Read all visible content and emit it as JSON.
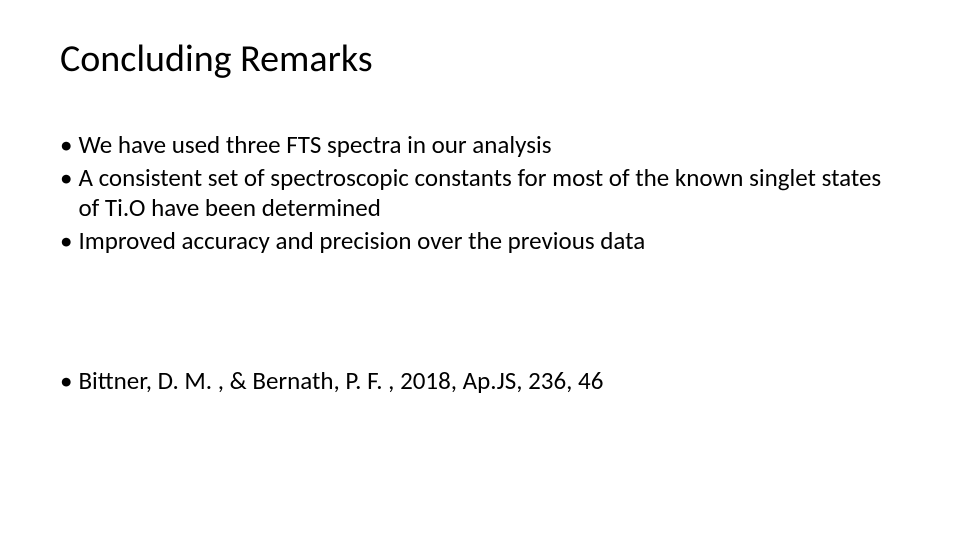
{
  "slide": {
    "title": "Concluding Remarks",
    "title_fontsize": 38,
    "title_color": "#000000",
    "background_color": "#ffffff",
    "body_fontsize": 25,
    "body_color": "#000000",
    "bullet_marker": "•",
    "bullets_top": [
      "We have used three FTS spectra in our analysis",
      "A consistent set of spectroscopic constants for most of the known singlet states of Ti.O have been determined",
      "Improved accuracy and precision over the previous data"
    ],
    "bullets_bottom": [
      "Bittner, D. M. , & Bernath, P. F. , 2018, Ap.JS, 236, 46"
    ]
  }
}
